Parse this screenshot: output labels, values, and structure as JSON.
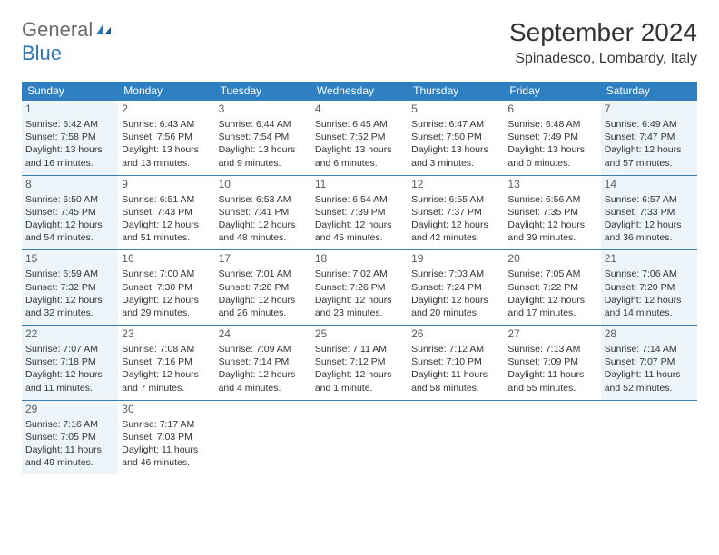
{
  "logo": {
    "text1": "General",
    "text2": "Blue"
  },
  "title": "September 2024",
  "location": "Spinadesco, Lombardy, Italy",
  "colors": {
    "header_bg": "#2f80c2",
    "header_text": "#ffffff",
    "border": "#3a7fb5",
    "shaded_bg": "#eef5fa",
    "logo_gray": "#6d6d6d",
    "logo_blue": "#2a74b8",
    "text": "#333333"
  },
  "weekdays": [
    "Sunday",
    "Monday",
    "Tuesday",
    "Wednesday",
    "Thursday",
    "Friday",
    "Saturday"
  ],
  "weeks": [
    [
      {
        "n": "1",
        "shade": true,
        "sunrise": "6:42 AM",
        "sunset": "7:58 PM",
        "dlh": "13",
        "dlm": "16"
      },
      {
        "n": "2",
        "shade": false,
        "sunrise": "6:43 AM",
        "sunset": "7:56 PM",
        "dlh": "13",
        "dlm": "13"
      },
      {
        "n": "3",
        "shade": false,
        "sunrise": "6:44 AM",
        "sunset": "7:54 PM",
        "dlh": "13",
        "dlm": "9"
      },
      {
        "n": "4",
        "shade": false,
        "sunrise": "6:45 AM",
        "sunset": "7:52 PM",
        "dlh": "13",
        "dlm": "6"
      },
      {
        "n": "5",
        "shade": false,
        "sunrise": "6:47 AM",
        "sunset": "7:50 PM",
        "dlh": "13",
        "dlm": "3"
      },
      {
        "n": "6",
        "shade": false,
        "sunrise": "6:48 AM",
        "sunset": "7:49 PM",
        "dlh": "13",
        "dlm": "0"
      },
      {
        "n": "7",
        "shade": true,
        "sunrise": "6:49 AM",
        "sunset": "7:47 PM",
        "dlh": "12",
        "dlm": "57"
      }
    ],
    [
      {
        "n": "8",
        "shade": true,
        "sunrise": "6:50 AM",
        "sunset": "7:45 PM",
        "dlh": "12",
        "dlm": "54"
      },
      {
        "n": "9",
        "shade": false,
        "sunrise": "6:51 AM",
        "sunset": "7:43 PM",
        "dlh": "12",
        "dlm": "51"
      },
      {
        "n": "10",
        "shade": false,
        "sunrise": "6:53 AM",
        "sunset": "7:41 PM",
        "dlh": "12",
        "dlm": "48"
      },
      {
        "n": "11",
        "shade": false,
        "sunrise": "6:54 AM",
        "sunset": "7:39 PM",
        "dlh": "12",
        "dlm": "45"
      },
      {
        "n": "12",
        "shade": false,
        "sunrise": "6:55 AM",
        "sunset": "7:37 PM",
        "dlh": "12",
        "dlm": "42"
      },
      {
        "n": "13",
        "shade": false,
        "sunrise": "6:56 AM",
        "sunset": "7:35 PM",
        "dlh": "12",
        "dlm": "39"
      },
      {
        "n": "14",
        "shade": true,
        "sunrise": "6:57 AM",
        "sunset": "7:33 PM",
        "dlh": "12",
        "dlm": "36"
      }
    ],
    [
      {
        "n": "15",
        "shade": true,
        "sunrise": "6:59 AM",
        "sunset": "7:32 PM",
        "dlh": "12",
        "dlm": "32"
      },
      {
        "n": "16",
        "shade": false,
        "sunrise": "7:00 AM",
        "sunset": "7:30 PM",
        "dlh": "12",
        "dlm": "29"
      },
      {
        "n": "17",
        "shade": false,
        "sunrise": "7:01 AM",
        "sunset": "7:28 PM",
        "dlh": "12",
        "dlm": "26"
      },
      {
        "n": "18",
        "shade": false,
        "sunrise": "7:02 AM",
        "sunset": "7:26 PM",
        "dlh": "12",
        "dlm": "23"
      },
      {
        "n": "19",
        "shade": false,
        "sunrise": "7:03 AM",
        "sunset": "7:24 PM",
        "dlh": "12",
        "dlm": "20"
      },
      {
        "n": "20",
        "shade": false,
        "sunrise": "7:05 AM",
        "sunset": "7:22 PM",
        "dlh": "12",
        "dlm": "17"
      },
      {
        "n": "21",
        "shade": true,
        "sunrise": "7:06 AM",
        "sunset": "7:20 PM",
        "dlh": "12",
        "dlm": "14"
      }
    ],
    [
      {
        "n": "22",
        "shade": true,
        "sunrise": "7:07 AM",
        "sunset": "7:18 PM",
        "dlh": "12",
        "dlm": "11"
      },
      {
        "n": "23",
        "shade": false,
        "sunrise": "7:08 AM",
        "sunset": "7:16 PM",
        "dlh": "12",
        "dlm": "7"
      },
      {
        "n": "24",
        "shade": false,
        "sunrise": "7:09 AM",
        "sunset": "7:14 PM",
        "dlh": "12",
        "dlm": "4"
      },
      {
        "n": "25",
        "shade": false,
        "sunrise": "7:11 AM",
        "sunset": "7:12 PM",
        "dlh": "12",
        "dlm": "1"
      },
      {
        "n": "26",
        "shade": false,
        "sunrise": "7:12 AM",
        "sunset": "7:10 PM",
        "dlh": "11",
        "dlm": "58"
      },
      {
        "n": "27",
        "shade": false,
        "sunrise": "7:13 AM",
        "sunset": "7:09 PM",
        "dlh": "11",
        "dlm": "55"
      },
      {
        "n": "28",
        "shade": true,
        "sunrise": "7:14 AM",
        "sunset": "7:07 PM",
        "dlh": "11",
        "dlm": "52"
      }
    ],
    [
      {
        "n": "29",
        "shade": true,
        "sunrise": "7:16 AM",
        "sunset": "7:05 PM",
        "dlh": "11",
        "dlm": "49"
      },
      {
        "n": "30",
        "shade": false,
        "sunrise": "7:17 AM",
        "sunset": "7:03 PM",
        "dlh": "11",
        "dlm": "46"
      },
      null,
      null,
      null,
      null,
      null
    ]
  ],
  "labels": {
    "sunrise_prefix": "Sunrise: ",
    "sunset_prefix": "Sunset: ",
    "daylight_prefix": "Daylight: ",
    "hours_word": " hours",
    "and_word": "and ",
    "minutes_suffix": " minutes.",
    "minute_suffix": " minute."
  }
}
